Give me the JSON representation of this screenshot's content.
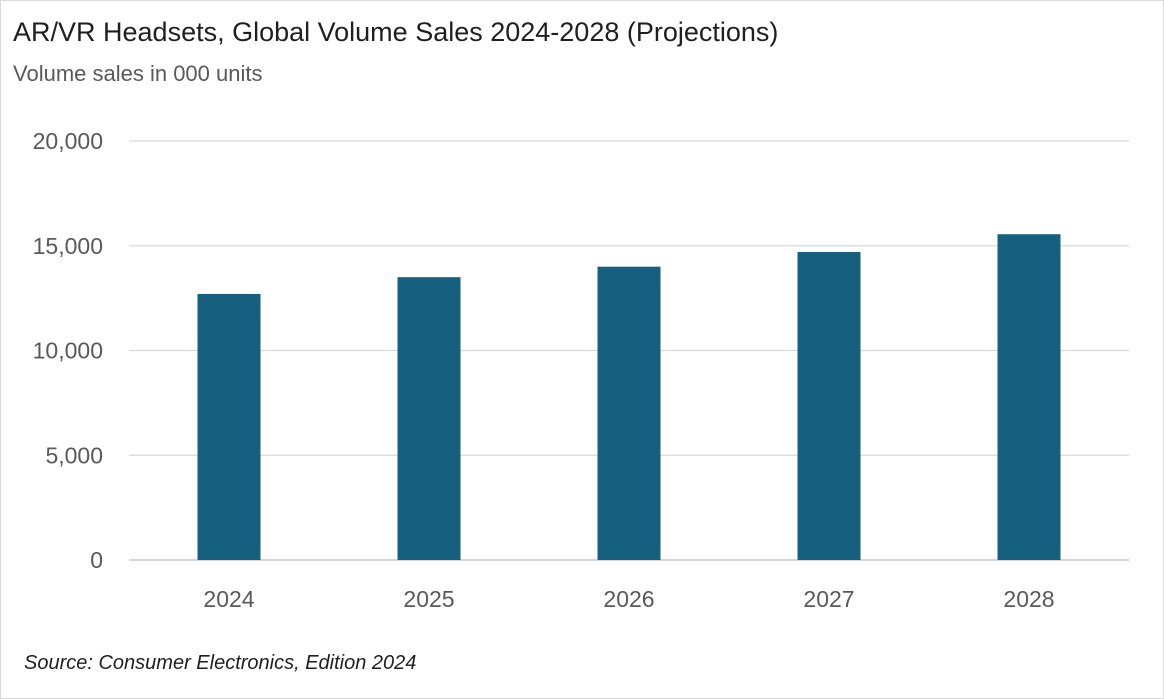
{
  "title": "AR/VR Headsets, Global Volume Sales 2024-2028 (Projections)",
  "subtitle": "Volume sales in 000 units",
  "source": "Source: Consumer Electronics, Edition 2024",
  "chart_data": {
    "type": "bar",
    "categories": [
      "2024",
      "2025",
      "2026",
      "2027",
      "2028"
    ],
    "values": [
      12700,
      13500,
      14000,
      14700,
      15550
    ],
    "ylim": [
      0,
      20000
    ],
    "yticks": [
      0,
      5000,
      10000,
      15000,
      20000
    ],
    "ytick_labels": [
      "0",
      "5,000",
      "10,000",
      "15,000",
      "20,000"
    ],
    "grid": true,
    "legend": "none",
    "colors": {
      "bar": "#16607f",
      "grid": "#d9d9d9",
      "axis": "#bfbfbf"
    }
  }
}
